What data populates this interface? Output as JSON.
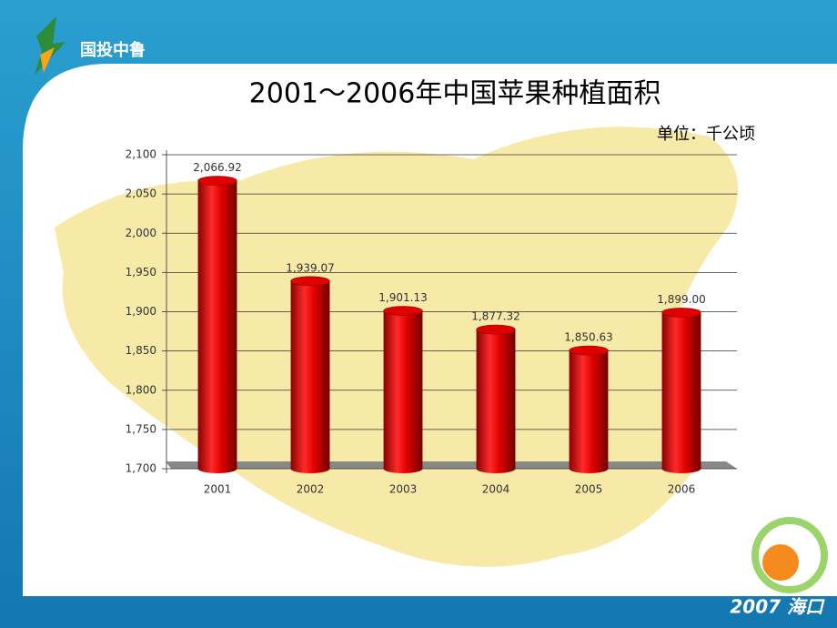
{
  "logo": "国投中鲁",
  "footer": "2007 海口",
  "chart_data": {
    "type": "bar",
    "title": "2001～2006年中国苹果种植面积",
    "subtitle": "单位：千公顷",
    "categories": [
      "2001",
      "2002",
      "2003",
      "2004",
      "2005",
      "2006"
    ],
    "values": [
      2066.92,
      1939.07,
      1901.13,
      1877.32,
      1850.63,
      1899.0
    ],
    "value_labels": [
      "2,066.92",
      "1,939.07",
      "1,901.13",
      "1,877.32",
      "1,850.63",
      "1,899.00"
    ],
    "color": "#e00000",
    "ylim": [
      1700,
      2100
    ],
    "yticks": [
      {
        "value": 1700,
        "label": "1,700"
      },
      {
        "value": 1750,
        "label": "1,750"
      },
      {
        "value": 1800,
        "label": "1,800"
      },
      {
        "value": 1850,
        "label": "1,850"
      },
      {
        "value": 1900,
        "label": "1,900"
      },
      {
        "value": 1950,
        "label": "1,950"
      },
      {
        "value": 2000,
        "label": "2,000"
      },
      {
        "value": 2050,
        "label": "2,050"
      },
      {
        "value": 2100,
        "label": "2,100"
      }
    ],
    "grid": true
  }
}
